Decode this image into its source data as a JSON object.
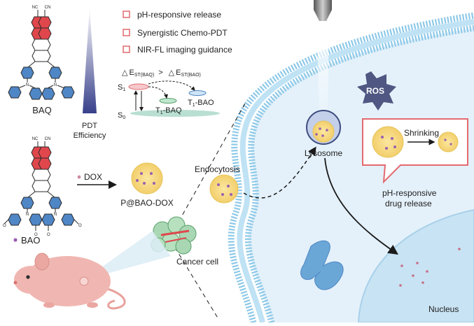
{
  "legend": {
    "items": [
      {
        "label": "pH-responsive release"
      },
      {
        "label": "Synergistic Chemo-PDT"
      },
      {
        "label": "NIR-FL imaging guidance"
      }
    ],
    "marker_color": "#e36a6e"
  },
  "molecules": {
    "top_name": "BAQ",
    "bottom_name": "BAO",
    "cn_label": "NC",
    "cn_label_right": "CN",
    "methoxy_label": "O",
    "nitrogen_label": "N"
  },
  "pdt": {
    "axis_label_line1": "PDT",
    "axis_label_line2": "Efficiency"
  },
  "energy": {
    "delta_symbol": "△",
    "est_baq_main": "E",
    "est_baq_sub": "ST(BAQ)",
    "compare": ">",
    "est_bao_main": "E",
    "est_bao_sub": "ST(BAO)",
    "s1_main": "S",
    "s1_sub": "1",
    "s0_main": "S",
    "s0_sub": "0",
    "t1_baq_main": "T",
    "t1_baq_sub": "1",
    "t1_baq_rest": "-BAQ",
    "t1_bao_main": "T",
    "t1_bao_sub": "1",
    "t1_bao_rest": "-BAO"
  },
  "assembly": {
    "dox_label": "DOX",
    "product_label": "P@BAO-DOX"
  },
  "cell": {
    "endocytosis": "Endocytosis",
    "lysosome": "Lysosome",
    "ros": "ROS",
    "shrinking": "Shrinking",
    "release_line1": "pH-responsive",
    "release_line2": "drug release",
    "nucleus": "Nucleus",
    "cancer_cell": "Cancer cell"
  },
  "colors": {
    "accent_pink": "#e36a6e",
    "ring_red": "#e0474c",
    "ring_blue": "#4f86c6",
    "ros_fill": "#4f5782",
    "dox_purple": "#9b5fb0",
    "membrane": "#8ec9e8",
    "cytoplasm": "#e4f1fa",
    "nucleus": "#c8e3f3",
    "mouse": "#f0b7b2"
  }
}
